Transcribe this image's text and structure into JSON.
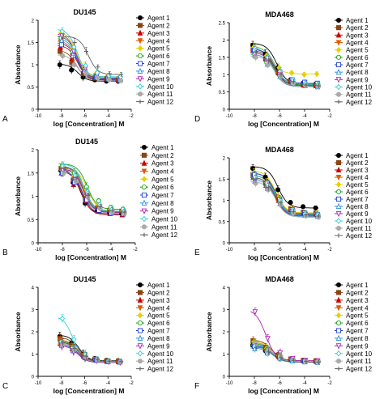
{
  "agents": [
    {
      "name": "Agent 1",
      "color": "#000000",
      "marker": "circle"
    },
    {
      "name": "Agent 2",
      "color": "#8B4513",
      "marker": "square"
    },
    {
      "name": "Agent 3",
      "color": "#cc0000",
      "marker": "triangle"
    },
    {
      "name": "Agent 4",
      "color": "#e05a00",
      "marker": "triangle-down"
    },
    {
      "name": "Agent 5",
      "color": "#e8d000",
      "marker": "diamond"
    },
    {
      "name": "Agent 6",
      "color": "#1a9e1a",
      "marker": "circle-open"
    },
    {
      "name": "Agent 7",
      "color": "#1f3fd6",
      "marker": "square-open"
    },
    {
      "name": "Agent 8",
      "color": "#2a8fe0",
      "marker": "triangle-open"
    },
    {
      "name": "Agent 9",
      "color": "#b31fb3",
      "marker": "triangle-down-open"
    },
    {
      "name": "Agent 10",
      "color": "#30d0d0",
      "marker": "diamond-open"
    },
    {
      "name": "Agent 11",
      "color": "#aaaaaa",
      "marker": "circle"
    },
    {
      "name": "Agent 12",
      "color": "#666666",
      "marker": "plus"
    }
  ],
  "chart_data": [
    {
      "type": "scatter",
      "panel": "A",
      "title": "DU145",
      "xlabel": "log [Concentration] M",
      "ylabel": "Absorbance",
      "xlim": [
        -10,
        -2
      ],
      "ylim": [
        0,
        2.0
      ],
      "xticks": [
        -10,
        -8,
        -6,
        -4,
        -2
      ],
      "yticks": [
        0.0,
        0.5,
        1.0,
        1.5,
        2.0
      ],
      "x": [
        -8,
        -7,
        -6,
        -5,
        -4,
        -3
      ],
      "series": [
        {
          "name": "Agent 1",
          "values": [
            1.0,
            0.88,
            0.72,
            0.66,
            0.63,
            0.63
          ]
        },
        {
          "name": "Agent 2",
          "values": [
            1.3,
            1.05,
            0.8,
            0.7,
            0.68,
            0.66
          ]
        },
        {
          "name": "Agent 3",
          "values": [
            1.4,
            1.15,
            0.85,
            0.72,
            0.68,
            0.66
          ]
        },
        {
          "name": "Agent 4",
          "values": [
            1.5,
            1.2,
            0.9,
            0.75,
            0.7,
            0.68
          ]
        },
        {
          "name": "Agent 5",
          "values": [
            1.7,
            1.35,
            0.95,
            0.8,
            0.75,
            0.72
          ]
        },
        {
          "name": "Agent 6",
          "values": [
            1.6,
            1.3,
            0.9,
            0.75,
            0.72,
            0.7
          ]
        },
        {
          "name": "Agent 7",
          "values": [
            1.45,
            1.2,
            0.85,
            0.72,
            0.68,
            0.65
          ]
        },
        {
          "name": "Agent 8",
          "values": [
            1.55,
            1.25,
            0.9,
            0.74,
            0.7,
            0.68
          ]
        },
        {
          "name": "Agent 9",
          "values": [
            1.65,
            1.3,
            0.92,
            0.76,
            0.72,
            0.69
          ]
        },
        {
          "name": "Agent 10",
          "values": [
            1.75,
            1.4,
            0.98,
            0.82,
            0.76,
            0.73
          ]
        },
        {
          "name": "Agent 11",
          "values": [
            1.2,
            1.0,
            0.8,
            0.7,
            0.66,
            0.64
          ]
        },
        {
          "name": "Agent 12",
          "values": [
            1.6,
            1.5,
            1.3,
            0.95,
            0.8,
            0.78
          ]
        }
      ]
    },
    {
      "type": "scatter",
      "panel": "D",
      "title": "MDA468",
      "xlabel": "log [Concentration] M",
      "ylabel": "Absorbance",
      "xlim": [
        -10,
        -2
      ],
      "ylim": [
        0,
        2.5
      ],
      "xticks": [
        -10,
        -8,
        -6,
        -4,
        -2
      ],
      "yticks": [
        0.0,
        0.5,
        1.0,
        1.5,
        2.0,
        2.5
      ],
      "x": [
        -8,
        -7,
        -6,
        -5,
        -4,
        -3
      ],
      "series": [
        {
          "name": "Agent 1",
          "values": [
            1.85,
            1.6,
            1.2,
            0.85,
            0.75,
            0.72
          ]
        },
        {
          "name": "Agent 2",
          "values": [
            1.7,
            1.45,
            1.05,
            0.8,
            0.7,
            0.68
          ]
        },
        {
          "name": "Agent 3",
          "values": [
            1.75,
            1.5,
            1.1,
            0.82,
            0.72,
            0.7
          ]
        },
        {
          "name": "Agent 4",
          "values": [
            1.65,
            1.4,
            1.0,
            0.78,
            0.7,
            0.66
          ]
        },
        {
          "name": "Agent 5",
          "values": [
            1.8,
            1.55,
            1.2,
            1.05,
            1.0,
            1.02
          ]
        },
        {
          "name": "Agent 6",
          "values": [
            1.6,
            1.35,
            1.0,
            0.8,
            0.72,
            0.7
          ]
        },
        {
          "name": "Agent 7",
          "values": [
            1.7,
            1.45,
            1.05,
            0.85,
            0.78,
            0.75
          ]
        },
        {
          "name": "Agent 8",
          "values": [
            1.55,
            1.3,
            0.95,
            0.75,
            0.68,
            0.65
          ]
        },
        {
          "name": "Agent 9",
          "values": [
            1.6,
            1.4,
            1.0,
            0.78,
            0.7,
            0.68
          ]
        },
        {
          "name": "Agent 10",
          "values": [
            1.75,
            1.5,
            1.1,
            0.85,
            0.75,
            0.72
          ]
        },
        {
          "name": "Agent 11",
          "values": [
            1.5,
            1.3,
            0.95,
            0.75,
            0.68,
            0.66
          ]
        },
        {
          "name": "Agent 12",
          "values": [
            1.65,
            1.42,
            1.02,
            0.8,
            0.7,
            0.68
          ]
        }
      ]
    },
    {
      "type": "scatter",
      "panel": "B",
      "title": "DU145",
      "xlabel": "log [Concentration] M",
      "ylabel": "Absorbance",
      "xlim": [
        -10,
        -2
      ],
      "ylim": [
        0,
        2.0
      ],
      "xticks": [
        -10,
        -8,
        -6,
        -4,
        -2
      ],
      "yticks": [
        0.0,
        0.5,
        1.0,
        1.5,
        2.0
      ],
      "x": [
        -8,
        -7,
        -6,
        -5,
        -4,
        -3
      ],
      "series": [
        {
          "name": "Agent 1",
          "values": [
            1.55,
            1.3,
            0.85,
            0.7,
            0.65,
            0.63
          ]
        },
        {
          "name": "Agent 2",
          "values": [
            1.6,
            1.35,
            0.95,
            0.75,
            0.7,
            0.68
          ]
        },
        {
          "name": "Agent 3",
          "values": [
            1.5,
            1.25,
            0.9,
            0.68,
            0.63,
            0.6
          ]
        },
        {
          "name": "Agent 4",
          "values": [
            1.6,
            1.4,
            1.05,
            0.78,
            0.7,
            0.66
          ]
        },
        {
          "name": "Agent 5",
          "values": [
            1.55,
            1.45,
            1.15,
            0.82,
            0.72,
            0.68
          ]
        },
        {
          "name": "Agent 6",
          "values": [
            1.65,
            1.5,
            1.2,
            0.9,
            0.76,
            0.72
          ]
        },
        {
          "name": "Agent 7",
          "values": [
            1.5,
            1.3,
            0.92,
            0.7,
            0.64,
            0.62
          ]
        },
        {
          "name": "Agent 8",
          "values": [
            1.6,
            1.42,
            1.08,
            0.8,
            0.7,
            0.66
          ]
        },
        {
          "name": "Agent 9",
          "values": [
            1.55,
            1.38,
            1.0,
            0.75,
            0.68,
            0.65
          ]
        },
        {
          "name": "Agent 10",
          "values": [
            1.65,
            1.45,
            1.1,
            0.82,
            0.72,
            0.68
          ]
        },
        {
          "name": "Agent 11",
          "values": [
            1.5,
            1.32,
            0.98,
            0.74,
            0.66,
            0.63
          ]
        },
        {
          "name": "Agent 12",
          "values": [
            1.6,
            1.4,
            1.02,
            0.78,
            0.7,
            0.66
          ]
        }
      ]
    },
    {
      "type": "scatter",
      "panel": "E",
      "title": "MDA468",
      "xlabel": "log [Concentration] M",
      "ylabel": "Absorbance",
      "xlim": [
        -10,
        -2
      ],
      "ylim": [
        0,
        2.0
      ],
      "xticks": [
        -10,
        -8,
        -6,
        -4,
        -2
      ],
      "yticks": [
        0.0,
        0.5,
        1.0,
        1.5,
        2.0
      ],
      "x": [
        -8,
        -7,
        -6,
        -5,
        -4,
        -3
      ],
      "series": [
        {
          "name": "Agent 1",
          "values": [
            1.75,
            1.55,
            1.25,
            0.95,
            0.85,
            0.82
          ]
        },
        {
          "name": "Agent 2",
          "values": [
            1.6,
            1.4,
            1.05,
            0.8,
            0.72,
            0.7
          ]
        },
        {
          "name": "Agent 3",
          "values": [
            1.55,
            1.35,
            1.0,
            0.78,
            0.7,
            0.68
          ]
        },
        {
          "name": "Agent 4",
          "values": [
            1.5,
            1.3,
            0.95,
            0.75,
            0.68,
            0.65
          ]
        },
        {
          "name": "Agent 5",
          "values": [
            1.65,
            1.42,
            1.08,
            0.8,
            0.72,
            0.7
          ]
        },
        {
          "name": "Agent 6",
          "values": [
            1.55,
            1.35,
            0.98,
            0.76,
            0.68,
            0.66
          ]
        },
        {
          "name": "Agent 7",
          "values": [
            1.6,
            1.4,
            1.02,
            0.78,
            0.7,
            0.67
          ]
        },
        {
          "name": "Agent 8",
          "values": [
            1.45,
            1.28,
            0.92,
            0.72,
            0.65,
            0.62
          ]
        },
        {
          "name": "Agent 9",
          "values": [
            1.5,
            1.32,
            0.96,
            0.75,
            0.67,
            0.64
          ]
        },
        {
          "name": "Agent 10",
          "values": [
            1.55,
            1.36,
            1.0,
            0.77,
            0.69,
            0.66
          ]
        },
        {
          "name": "Agent 11",
          "values": [
            1.4,
            1.25,
            0.9,
            0.7,
            0.63,
            0.6
          ]
        },
        {
          "name": "Agent 12",
          "values": [
            1.5,
            1.3,
            0.95,
            0.74,
            0.66,
            0.63
          ]
        }
      ]
    },
    {
      "type": "scatter",
      "panel": "C",
      "title": "DU145",
      "xlabel": "log [Concentration] M",
      "ylabel": "Absorbance",
      "xlim": [
        -10,
        -2
      ],
      "ylim": [
        0,
        4.0
      ],
      "xticks": [
        -10,
        -8,
        -6,
        -4,
        -2
      ],
      "yticks": [
        0,
        1,
        2,
        3,
        4
      ],
      "x": [
        -8,
        -7,
        -6,
        -5,
        -4,
        -3
      ],
      "series": [
        {
          "name": "Agent 1",
          "values": [
            1.8,
            1.5,
            1.0,
            0.8,
            0.72,
            0.7
          ]
        },
        {
          "name": "Agent 2",
          "values": [
            1.7,
            1.4,
            0.95,
            0.78,
            0.7,
            0.68
          ]
        },
        {
          "name": "Agent 3",
          "values": [
            1.5,
            1.25,
            0.9,
            0.75,
            0.68,
            0.66
          ]
        },
        {
          "name": "Agent 4",
          "values": [
            1.6,
            1.3,
            0.92,
            0.76,
            0.7,
            0.67
          ]
        },
        {
          "name": "Agent 5",
          "values": [
            1.45,
            1.2,
            0.88,
            0.74,
            0.68,
            0.65
          ]
        },
        {
          "name": "Agent 6",
          "values": [
            1.55,
            1.28,
            0.9,
            0.75,
            0.69,
            0.66
          ]
        },
        {
          "name": "Agent 7",
          "values": [
            1.4,
            1.15,
            0.85,
            0.72,
            0.66,
            0.64
          ]
        },
        {
          "name": "Agent 8",
          "values": [
            1.5,
            1.22,
            0.88,
            0.74,
            0.68,
            0.65
          ]
        },
        {
          "name": "Agent 9",
          "values": [
            1.35,
            1.1,
            0.82,
            0.7,
            0.65,
            0.62
          ]
        },
        {
          "name": "Agent 10",
          "values": [
            2.6,
            1.65,
            1.0,
            0.78,
            0.7,
            0.68
          ]
        },
        {
          "name": "Agent 11",
          "values": [
            1.45,
            1.2,
            0.87,
            0.73,
            0.67,
            0.64
          ]
        },
        {
          "name": "Agent 12",
          "values": [
            1.5,
            1.25,
            0.9,
            0.75,
            0.68,
            0.66
          ]
        }
      ]
    },
    {
      "type": "scatter",
      "panel": "F",
      "title": "MDA468",
      "xlabel": "log [Concentration] M",
      "ylabel": "Absorbance",
      "xlim": [
        -10,
        -2
      ],
      "ylim": [
        0,
        4.0
      ],
      "xticks": [
        -10,
        -8,
        -6,
        -4,
        -2
      ],
      "yticks": [
        0,
        1,
        2,
        3,
        4
      ],
      "x": [
        -8,
        -7,
        -6,
        -5,
        -4,
        -3
      ],
      "series": [
        {
          "name": "Agent 1",
          "values": [
            1.4,
            1.15,
            0.9,
            0.75,
            0.7,
            0.68
          ]
        },
        {
          "name": "Agent 2",
          "values": [
            1.6,
            1.3,
            0.95,
            0.78,
            0.72,
            0.7
          ]
        },
        {
          "name": "Agent 3",
          "values": [
            1.5,
            1.22,
            0.9,
            0.76,
            0.7,
            0.68
          ]
        },
        {
          "name": "Agent 4",
          "values": [
            1.3,
            1.1,
            0.85,
            0.72,
            0.67,
            0.65
          ]
        },
        {
          "name": "Agent 5",
          "values": [
            1.55,
            1.25,
            0.92,
            0.77,
            0.71,
            0.69
          ]
        },
        {
          "name": "Agent 6",
          "values": [
            1.45,
            1.18,
            0.88,
            0.74,
            0.69,
            0.66
          ]
        },
        {
          "name": "Agent 7",
          "values": [
            1.35,
            1.12,
            0.86,
            0.73,
            0.68,
            0.65
          ]
        },
        {
          "name": "Agent 8",
          "values": [
            1.25,
            1.05,
            0.82,
            0.7,
            0.65,
            0.63
          ]
        },
        {
          "name": "Agent 9",
          "values": [
            2.9,
            1.7,
            1.05,
            0.8,
            0.72,
            0.7
          ]
        },
        {
          "name": "Agent 10",
          "values": [
            1.4,
            1.15,
            0.87,
            0.73,
            0.68,
            0.66
          ]
        },
        {
          "name": "Agent 11",
          "values": [
            1.5,
            1.2,
            0.9,
            0.75,
            0.69,
            0.67
          ]
        },
        {
          "name": "Agent 12",
          "values": [
            1.3,
            1.1,
            0.84,
            0.72,
            0.67,
            0.64
          ]
        }
      ]
    }
  ]
}
